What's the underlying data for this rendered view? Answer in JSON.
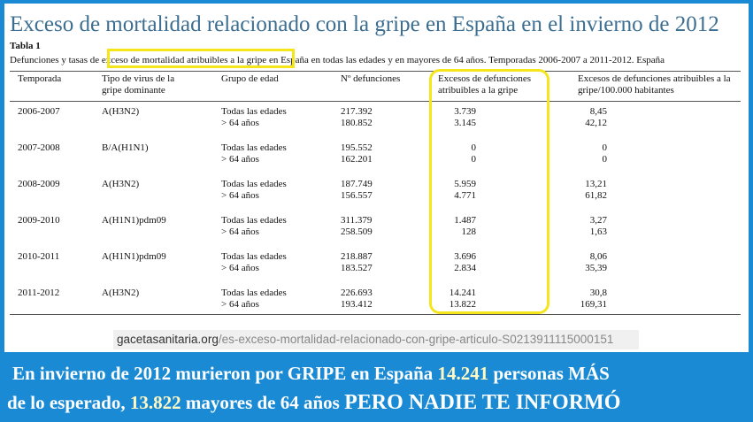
{
  "header": {
    "title": "Exceso de mortalidad relacionado con la gripe en España en el invierno de 2012"
  },
  "table": {
    "label": "Tabla 1",
    "caption": [
      "Defunciones y tasas de",
      "exceso de mortalidad atribuibles a la gripe",
      "en España en todas las edades y en mayores de 64 años. Temporadas 2006-2007 a 2011-2012. España"
    ],
    "headers": [
      "Temporada",
      "Tipo de virus de la gripe dominante",
      "Grupo de edad",
      "Nº defunciones",
      "Excesos de defunciones atribuibles a la gripe",
      "Excesos de defunciones atribuibles a la gripe/100.000 habitantes"
    ],
    "rows": [
      {
        "season": "2006-2007",
        "virus": "A(H3N2)",
        "groups": [
          "Todas las edades",
          "> 64 años"
        ],
        "deaths": [
          "217.392",
          "180.852"
        ],
        "excess": [
          "3.739",
          "3.145"
        ],
        "rates": [
          "8,45",
          "42,12"
        ]
      },
      {
        "season": "2007-2008",
        "virus": "B/A(H1N1)",
        "groups": [
          "Todas las edades",
          "> 64 años"
        ],
        "deaths": [
          "195.552",
          "162.201"
        ],
        "excess": [
          "0",
          "0"
        ],
        "rates": [
          "0",
          "0"
        ]
      },
      {
        "season": "2008-2009",
        "virus": "A(H3N2)",
        "groups": [
          "Todas las edades",
          "> 64 años"
        ],
        "deaths": [
          "187.749",
          "156.557"
        ],
        "excess": [
          "5.959",
          "4.771"
        ],
        "rates": [
          "13,21",
          "61,82"
        ]
      },
      {
        "season": "2009-2010",
        "virus": "A(H1N1)pdm09",
        "groups": [
          "Todas las edades",
          "> 64 años"
        ],
        "deaths": [
          "311.379",
          "258.509"
        ],
        "excess": [
          "1.487",
          "128"
        ],
        "rates": [
          "3,27",
          "1,63"
        ]
      },
      {
        "season": "2010-2011",
        "virus": "A(H1N1)pdm09",
        "groups": [
          "Todas las edades",
          "> 64 años"
        ],
        "deaths": [
          "218.887",
          "183.527"
        ],
        "excess": [
          "3.696",
          "2.834"
        ],
        "rates": [
          "8,06",
          "35,39"
        ]
      },
      {
        "season": "2011-2012",
        "virus": "A(H3N2)",
        "groups": [
          "Todas las edades",
          "> 64 años"
        ],
        "deaths": [
          "226.693",
          "193.412"
        ],
        "excess": [
          "14.241",
          "13.822"
        ],
        "rates": [
          "30,8",
          "169,31"
        ]
      }
    ]
  },
  "source": {
    "domain": "gacetasanitaria.org",
    "path": "/es-exceso-mortalidad-relacionado-con-gripe-articulo-S0213911115000151"
  },
  "footer": {
    "line1": [
      "En invierno de 2012 murieron por GRIPE en España",
      "14.241",
      "personas MÁS"
    ],
    "line2": [
      "de lo esperado,",
      "13.822",
      "mayores de 64 años",
      "PERO NADIE TE INFORMÓ"
    ]
  }
}
